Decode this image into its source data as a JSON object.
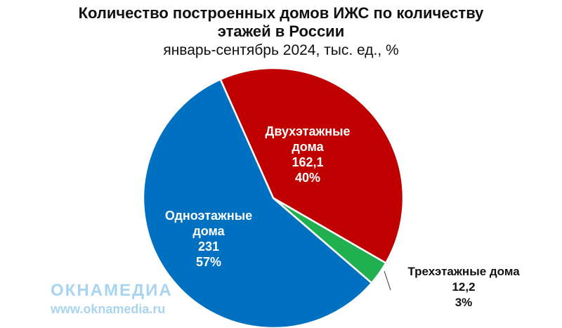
{
  "chart_data": {
    "type": "pie",
    "title_line1": "Количество построенных домов ИЖС по количеству",
    "title_line2": "этажей в России",
    "subtitle": "январь-сентябрь 2024, тыс. ед., %",
    "slices": [
      {
        "name": "Двухэтажные",
        "name2": "дома",
        "value": 162.1,
        "value_label": "162,1",
        "pct_label": "40%",
        "color": "#c00000"
      },
      {
        "name": "Трехэтажные дома",
        "name2": "",
        "value": 12.2,
        "value_label": "12,2",
        "pct_label": "3%",
        "color": "#21b050"
      },
      {
        "name": "Одноэтажные",
        "name2": "дома",
        "value": 231,
        "value_label": "231",
        "pct_label": "57%",
        "color": "#0070c0"
      }
    ]
  },
  "watermark": {
    "brand": "ОКНАМЕДИА",
    "url": "www.oknamedia.ru"
  }
}
